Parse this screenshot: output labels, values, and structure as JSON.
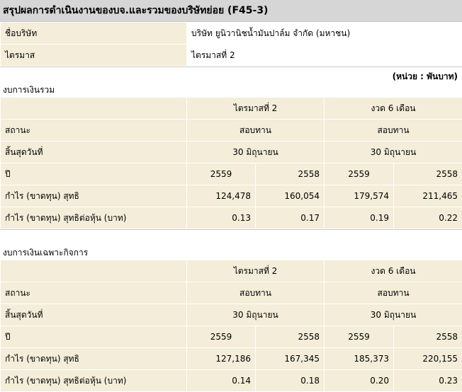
{
  "title": "สรุปผลการดำเนินงานของบจ.และรวมของบริษัทย่อย (F45-3)",
  "info": {
    "company_label": "ชื่อบริษัท",
    "company_value": "บริษัท ยูนิวานิชน้ำมันปาล์ม จำกัด (มหาชน)",
    "quarter_label": "ไตรมาส",
    "quarter_value": "ไตรมาสที่ 2"
  },
  "unit_note": "(หน่วย : พันบาท)",
  "sections": [
    {
      "label": "งบการเงินรวม",
      "head_quarter": "ไตรมาสที่ 2",
      "head_6m": "งวด 6 เดือน",
      "status_label": "สถานะ",
      "status_q": "สอบทาน",
      "status_6m": "สอบทาน",
      "end_label": "สิ้นสุดวันที่",
      "end_q": "30 มิถุนายน",
      "end_6m": "30 มิถุนายน",
      "year_label": "ปี",
      "years": [
        "2559",
        "2558",
        "2559",
        "2558"
      ],
      "profit_label": "กำไร (ขาดทุน) สุทธิ",
      "profit": [
        "124,478",
        "160,054",
        "179,574",
        "211,465"
      ],
      "eps_label": "กำไร (ขาดทุน) สุทธิต่อหุ้น (บาท)",
      "eps": [
        "0.13",
        "0.17",
        "0.19",
        "0.22"
      ]
    },
    {
      "label": "งบการเงินเฉพาะกิจการ",
      "head_quarter": "ไตรมาสที่ 2",
      "head_6m": "งวด 6 เดือน",
      "status_label": "สถานะ",
      "status_q": "สอบทาน",
      "status_6m": "สอบทาน",
      "end_label": "สิ้นสุดวันที่",
      "end_q": "30 มิถุนายน",
      "end_6m": "30 มิถุนายน",
      "year_label": "ปี",
      "years": [
        "2559",
        "2558",
        "2559",
        "2558"
      ],
      "profit_label": "กำไร (ขาดทุน) สุทธิ",
      "profit": [
        "127,186",
        "167,345",
        "185,373",
        "220,155"
      ],
      "eps_label": "กำไร (ขาดทุน) สุทธิต่อหุ้น (บาท)",
      "eps": [
        "0.14",
        "0.18",
        "0.20",
        "0.23"
      ]
    }
  ]
}
